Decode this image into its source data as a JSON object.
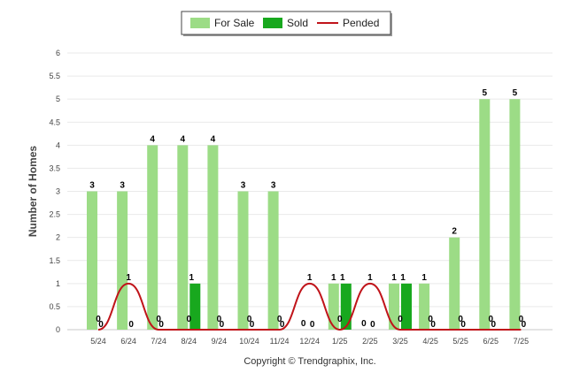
{
  "chart_data": {
    "type": "bar",
    "categories": [
      "5/24",
      "6/24",
      "7/24",
      "8/24",
      "9/24",
      "10/24",
      "11/24",
      "12/24",
      "1/25",
      "2/25",
      "3/25",
      "4/25",
      "5/25",
      "6/25",
      "7/25"
    ],
    "series": [
      {
        "name": "For Sale",
        "kind": "bar",
        "color": "#9cdc86",
        "values": [
          3,
          3,
          4,
          4,
          4,
          3,
          3,
          0,
          1,
          0,
          1,
          1,
          2,
          5,
          5
        ]
      },
      {
        "name": "Sold",
        "kind": "bar",
        "color": "#18a81e",
        "values": [
          0,
          0,
          0,
          1,
          0,
          0,
          0,
          0,
          1,
          0,
          1,
          0,
          0,
          0,
          0
        ]
      },
      {
        "name": "Pended",
        "kind": "line",
        "color": "#c0141a",
        "values": [
          0,
          1,
          0,
          0,
          0,
          0,
          0,
          1,
          0,
          1,
          0,
          0,
          0,
          0,
          0
        ]
      }
    ],
    "ylabel": "Number of Homes",
    "xlabel": "",
    "ylim": [
      0,
      6
    ],
    "yticks": [
      "0",
      "0.5",
      "1",
      "1.5",
      "2",
      "2.5",
      "3",
      "3.5",
      "4",
      "4.5",
      "5",
      "5.5",
      "6"
    ],
    "legend_position": "top-center",
    "grid": true,
    "footer": "Copyright © Trendgraphix, Inc."
  }
}
